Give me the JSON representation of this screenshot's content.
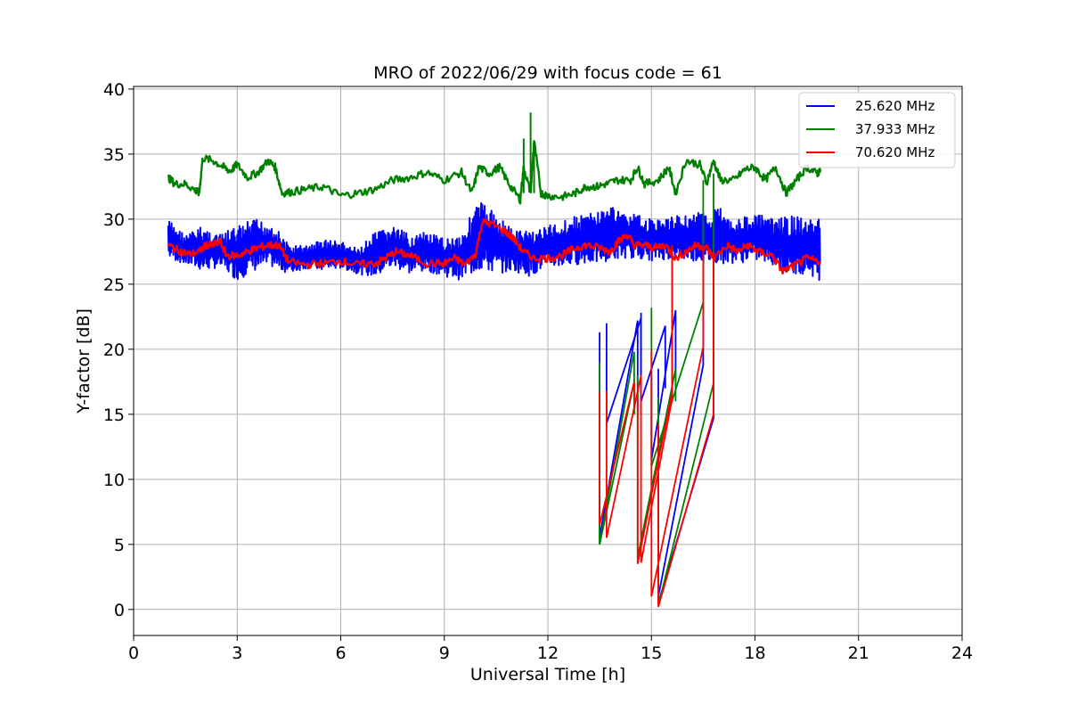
{
  "chart_data": {
    "type": "line",
    "title": "MRO of 2022/06/29 with focus code = 61",
    "xlabel": "Universal Time [h]",
    "ylabel": "Y-factor [dB]",
    "xlim": [
      0,
      24
    ],
    "ylim": [
      -2,
      40.2
    ],
    "xticks": [
      0,
      3,
      6,
      9,
      12,
      15,
      18,
      21,
      24
    ],
    "xtick_labels": [
      "0",
      "3",
      "6",
      "9",
      "12",
      "15",
      "18",
      "21",
      "24"
    ],
    "yticks": [
      0,
      5,
      10,
      15,
      20,
      25,
      30,
      35,
      40
    ],
    "ytick_labels": [
      "0",
      "5",
      "10",
      "15",
      "20",
      "25",
      "30",
      "35",
      "40"
    ],
    "grid": true,
    "legend_position": "top-right",
    "series": [
      {
        "name": "25.620 MHz",
        "color": "#0000ff",
        "band_x": [
          1.0,
          1.5,
          2.0,
          2.5,
          3.0,
          3.5,
          4.0,
          4.5,
          5.0,
          5.5,
          6.0,
          6.5,
          7.0,
          7.5,
          8.0,
          8.5,
          9.0,
          9.5,
          10.0,
          10.5,
          11.0,
          11.5,
          12.0,
          12.5,
          13.0,
          13.4,
          13.8,
          14.2,
          14.6,
          15.0,
          15.4,
          15.8,
          16.2,
          16.6,
          17.0,
          17.5,
          18.0,
          18.5,
          19.0,
          19.5,
          19.9
        ],
        "band_min": [
          27.0,
          26.5,
          26.0,
          26.3,
          25.3,
          26.0,
          26.3,
          25.8,
          26.2,
          26.0,
          26.2,
          25.8,
          25.5,
          26.3,
          25.8,
          26.0,
          25.6,
          25.3,
          26.0,
          25.8,
          26.0,
          25.6,
          26.3,
          26.3,
          26.6,
          26.6,
          26.8,
          27.0,
          27.0,
          26.8,
          26.9,
          26.9,
          26.8,
          26.6,
          26.6,
          26.6,
          26.8,
          26.5,
          25.5,
          25.9,
          25.2
        ],
        "band_max": [
          30.0,
          28.8,
          29.5,
          28.8,
          29.5,
          30.0,
          29.8,
          28.0,
          28.0,
          28.5,
          28.3,
          27.7,
          29.0,
          29.5,
          28.8,
          29.0,
          28.5,
          29.0,
          31.5,
          30.5,
          29.2,
          29.2,
          29.5,
          30.0,
          30.4,
          30.5,
          31.0,
          30.5,
          30.3,
          30.0,
          30.0,
          30.3,
          30.5,
          30.5,
          31.0,
          30.0,
          30.5,
          30.0,
          30.3,
          30.0,
          30.0
        ],
        "dropout_lines": [
          {
            "x": [
              13.5,
              13.5,
              14.6,
              14.6
            ],
            "y": [
              21.3,
              5.5,
              22.2,
              15.2
            ]
          },
          {
            "x": [
              13.7,
              13.7,
              14.7,
              14.7
            ],
            "y": [
              22.0,
              14.3,
              22.4,
              15.0
            ]
          },
          {
            "x": [
              14.7,
              14.7,
              15.4,
              15.4
            ],
            "y": [
              22.8,
              16.0,
              21.8,
              17.0
            ]
          },
          {
            "x": [
              15.0,
              15.0,
              15.7,
              15.7
            ],
            "y": [
              18.0,
              11.5,
              23.0,
              17.5
            ]
          },
          {
            "x": [
              15.2,
              15.2,
              16.5,
              16.5
            ],
            "y": [
              18.5,
              1.0,
              18.8,
              27.0
            ]
          },
          {
            "x": [
              15.2,
              15.2,
              16.8,
              16.8
            ],
            "y": [
              14.0,
              0.5,
              14.7,
              27.5
            ]
          }
        ]
      },
      {
        "name": "37.933 MHz",
        "color": "#008000",
        "x": [
          1.0,
          1.2,
          1.5,
          1.8,
          1.9,
          2.0,
          2.3,
          2.6,
          2.8,
          3.0,
          3.3,
          3.6,
          3.9,
          4.1,
          4.3,
          4.6,
          5.0,
          5.5,
          6.0,
          6.5,
          7.0,
          7.5,
          8.0,
          8.5,
          9.0,
          9.5,
          9.8,
          10.0,
          10.3,
          10.6,
          10.9,
          11.2,
          11.3,
          11.5,
          11.6,
          11.8,
          12.0,
          12.4,
          12.8,
          13.1,
          13.4,
          13.7,
          14.0,
          14.4,
          14.6,
          14.8,
          15.2,
          15.5,
          15.7,
          16.0,
          16.4,
          16.6,
          16.8,
          17.0,
          17.4,
          17.7,
          18.0,
          18.3,
          18.6,
          18.9,
          19.2,
          19.5,
          19.8,
          19.9
        ],
        "y": [
          33.2,
          32.7,
          32.7,
          32.2,
          32.0,
          34.7,
          34.5,
          34.0,
          33.7,
          34.2,
          33.2,
          33.6,
          34.5,
          34.0,
          32.0,
          32.1,
          32.3,
          32.5,
          31.8,
          32.0,
          32.3,
          33.0,
          33.2,
          33.6,
          33.0,
          33.6,
          32.0,
          34.0,
          33.5,
          34.0,
          32.6,
          31.5,
          34.0,
          32.0,
          36.0,
          32.0,
          31.8,
          31.7,
          32.0,
          32.5,
          32.5,
          32.7,
          33.0,
          33.0,
          34.0,
          32.7,
          33.0,
          34.0,
          32.0,
          34.5,
          34.2,
          32.8,
          34.5,
          33.0,
          33.0,
          33.8,
          34.0,
          33.0,
          34.0,
          32.0,
          33.0,
          34.0,
          33.5,
          33.8
        ],
        "spikes": [
          {
            "x": 11.3,
            "y": 36.2
          },
          {
            "x": 11.5,
            "y": 38.2
          },
          {
            "x": 11.6,
            "y": 35.5
          }
        ],
        "dropout_lines": [
          {
            "x": [
              13.5,
              13.5,
              14.5,
              14.5
            ],
            "y": [
              19.0,
              5.0,
              19.8,
              15.0
            ]
          },
          {
            "x": [
              13.5,
              13.5,
              14.5,
              14.5
            ],
            "y": [
              16.7,
              5.0,
              17.5,
              15.0
            ]
          },
          {
            "x": [
              14.6,
              14.6,
              15.7,
              15.7
            ],
            "y": [
              18.0,
              4.0,
              18.5,
              16.0
            ]
          },
          {
            "x": [
              15.0,
              15.0,
              16.5,
              16.5
            ],
            "y": [
              23.2,
              11.0,
              23.6,
              33.0
            ]
          },
          {
            "x": [
              15.2,
              15.2,
              16.8,
              16.8
            ],
            "y": [
              16.3,
              0.3,
              17.4,
              33.5
            ]
          }
        ]
      },
      {
        "name": "70.620 MHz",
        "color": "#ff0000",
        "x": [
          1.0,
          1.3,
          1.6,
          1.9,
          2.1,
          2.3,
          2.5,
          2.7,
          3.0,
          3.3,
          3.6,
          3.9,
          4.2,
          4.5,
          5.0,
          5.5,
          6.0,
          6.5,
          7.0,
          7.3,
          7.6,
          8.0,
          8.5,
          9.0,
          9.3,
          9.6,
          9.9,
          10.1,
          10.4,
          10.8,
          11.0,
          11.3,
          11.6,
          12.0,
          12.4,
          12.8,
          13.1,
          13.5,
          13.8,
          14.0,
          14.3,
          14.5,
          14.8,
          15.1,
          15.4,
          15.7,
          16.0,
          16.3,
          16.6,
          16.8,
          17.2,
          17.5,
          17.8,
          18.1,
          18.5,
          18.8,
          19.2,
          19.5,
          19.9
        ],
        "y": [
          28.0,
          27.6,
          27.3,
          27.5,
          28.0,
          28.0,
          28.3,
          27.2,
          27.2,
          27.5,
          27.8,
          28.0,
          28.0,
          26.7,
          26.5,
          26.6,
          26.8,
          26.5,
          26.6,
          27.0,
          27.5,
          27.2,
          26.6,
          26.6,
          27.0,
          26.5,
          27.3,
          29.8,
          29.6,
          29.0,
          28.5,
          27.5,
          27.0,
          27.0,
          27.2,
          27.8,
          28.0,
          27.8,
          27.5,
          28.2,
          28.8,
          28.0,
          28.0,
          27.8,
          28.0,
          27.0,
          27.5,
          28.0,
          27.8,
          27.0,
          28.0,
          27.5,
          28.0,
          27.5,
          27.2,
          26.0,
          26.5,
          27.0,
          26.7
        ],
        "dropout_lines": [
          {
            "x": [
              13.5,
              13.5,
              14.5,
              14.5
            ],
            "y": [
              16.7,
              6.5,
              17.5,
              15.5
            ]
          },
          {
            "x": [
              13.7,
              13.7,
              14.7,
              14.7
            ],
            "y": [
              16.8,
              5.5,
              18.0,
              15.0
            ]
          },
          {
            "x": [
              14.6,
              14.6,
              15.6,
              15.6
            ],
            "y": [
              16.2,
              3.5,
              16.7,
              27.5
            ]
          },
          {
            "x": [
              14.7,
              14.7,
              15.6,
              15.6
            ],
            "y": [
              15.5,
              3.6,
              16.2,
              28.0
            ]
          },
          {
            "x": [
              15.0,
              15.0,
              16.5,
              16.5
            ],
            "y": [
              19.9,
              1.0,
              20.2,
              28.0
            ]
          },
          {
            "x": [
              15.2,
              15.2,
              16.8,
              16.8
            ],
            "y": [
              14.2,
              0.2,
              15.0,
              27.5
            ]
          }
        ]
      }
    ]
  }
}
